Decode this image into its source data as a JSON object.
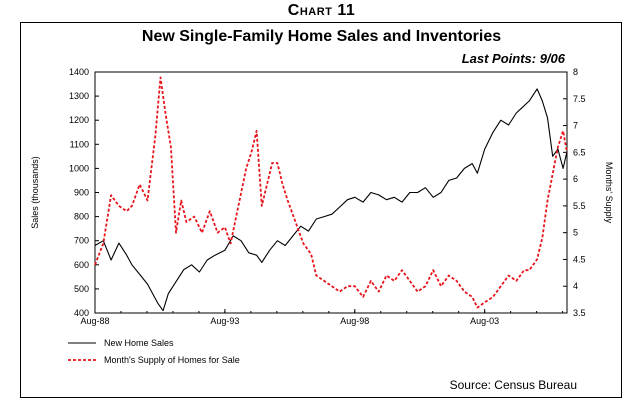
{
  "header": {
    "chart_number": "Chart 11",
    "title": "New Single-Family Home Sales and Inventories",
    "last_points": "Last Points: 9/06",
    "source": "Source: Census Bureau"
  },
  "colors": {
    "sales": "#000000",
    "supply": "#e8141c"
  },
  "chart_data": {
    "type": "line",
    "title": "New Single-Family Home Sales and Inventories",
    "xlabel": "",
    "ylabel": "Sales (thousands)",
    "y2label": "Months' Supply",
    "x_range": [
      1988.58,
      2006.75
    ],
    "ylim": [
      400,
      1400
    ],
    "y2lim": [
      3.5,
      8
    ],
    "y_ticks": [
      400,
      500,
      600,
      700,
      800,
      900,
      1000,
      1100,
      1200,
      1300,
      1400
    ],
    "y2_ticks": [
      3.5,
      4,
      4.5,
      5,
      5.5,
      6,
      6.5,
      7,
      7.5,
      8
    ],
    "x_ticks": [
      {
        "x": 1988.58,
        "label": "Aug-88"
      },
      {
        "x": 1993.58,
        "label": "Aug-93"
      },
      {
        "x": 1998.58,
        "label": "Aug-98"
      },
      {
        "x": 2003.58,
        "label": "Aug-03"
      }
    ],
    "grid": false,
    "legend_position": "bottom-left",
    "series": [
      {
        "name": "New Home Sales",
        "axis": "left",
        "style": "solid",
        "points": [
          [
            1988.58,
            680
          ],
          [
            1988.9,
            700
          ],
          [
            1989.2,
            620
          ],
          [
            1989.5,
            690
          ],
          [
            1989.8,
            640
          ],
          [
            1990.0,
            600
          ],
          [
            1990.3,
            560
          ],
          [
            1990.6,
            520
          ],
          [
            1991.0,
            440
          ],
          [
            1991.2,
            410
          ],
          [
            1991.4,
            480
          ],
          [
            1991.7,
            530
          ],
          [
            1992.0,
            580
          ],
          [
            1992.3,
            600
          ],
          [
            1992.6,
            570
          ],
          [
            1992.9,
            620
          ],
          [
            1993.2,
            640
          ],
          [
            1993.58,
            660
          ],
          [
            1993.9,
            720
          ],
          [
            1994.2,
            700
          ],
          [
            1994.5,
            650
          ],
          [
            1994.8,
            640
          ],
          [
            1995.0,
            610
          ],
          [
            1995.3,
            660
          ],
          [
            1995.6,
            700
          ],
          [
            1995.9,
            680
          ],
          [
            1996.2,
            720
          ],
          [
            1996.5,
            760
          ],
          [
            1996.8,
            740
          ],
          [
            1997.1,
            790
          ],
          [
            1997.4,
            800
          ],
          [
            1997.7,
            810
          ],
          [
            1998.0,
            840
          ],
          [
            1998.3,
            870
          ],
          [
            1998.58,
            880
          ],
          [
            1998.9,
            860
          ],
          [
            1999.2,
            900
          ],
          [
            1999.5,
            890
          ],
          [
            1999.8,
            870
          ],
          [
            2000.1,
            880
          ],
          [
            2000.4,
            860
          ],
          [
            2000.7,
            900
          ],
          [
            2001.0,
            900
          ],
          [
            2001.3,
            920
          ],
          [
            2001.6,
            880
          ],
          [
            2001.9,
            900
          ],
          [
            2002.2,
            950
          ],
          [
            2002.5,
            960
          ],
          [
            2002.8,
            1000
          ],
          [
            2003.1,
            1020
          ],
          [
            2003.3,
            980
          ],
          [
            2003.58,
            1080
          ],
          [
            2003.9,
            1150
          ],
          [
            2004.2,
            1200
          ],
          [
            2004.5,
            1180
          ],
          [
            2004.8,
            1230
          ],
          [
            2005.0,
            1250
          ],
          [
            2005.3,
            1280
          ],
          [
            2005.6,
            1330
          ],
          [
            2005.8,
            1280
          ],
          [
            2006.0,
            1210
          ],
          [
            2006.2,
            1050
          ],
          [
            2006.4,
            1080
          ],
          [
            2006.6,
            1000
          ],
          [
            2006.75,
            1070
          ]
        ]
      },
      {
        "name": "Month's Supply of Homes for Sale",
        "axis": "right",
        "style": "dashed",
        "points": [
          [
            1988.58,
            4.4
          ],
          [
            1988.9,
            4.8
          ],
          [
            1989.2,
            5.7
          ],
          [
            1989.5,
            5.5
          ],
          [
            1989.8,
            5.4
          ],
          [
            1990.0,
            5.5
          ],
          [
            1990.3,
            5.9
          ],
          [
            1990.6,
            5.6
          ],
          [
            1990.9,
            6.8
          ],
          [
            1991.1,
            7.9
          ],
          [
            1991.3,
            7.2
          ],
          [
            1991.5,
            6.6
          ],
          [
            1991.7,
            5.0
          ],
          [
            1991.9,
            5.6
          ],
          [
            1992.1,
            5.2
          ],
          [
            1992.4,
            5.3
          ],
          [
            1992.7,
            5.0
          ],
          [
            1993.0,
            5.4
          ],
          [
            1993.3,
            5.0
          ],
          [
            1993.58,
            5.1
          ],
          [
            1993.8,
            4.8
          ],
          [
            1994.1,
            5.5
          ],
          [
            1994.4,
            6.2
          ],
          [
            1994.6,
            6.5
          ],
          [
            1994.8,
            6.9
          ],
          [
            1995.0,
            5.5
          ],
          [
            1995.2,
            5.9
          ],
          [
            1995.4,
            6.3
          ],
          [
            1995.6,
            6.3
          ],
          [
            1995.8,
            5.9
          ],
          [
            1996.0,
            5.6
          ],
          [
            1996.3,
            5.2
          ],
          [
            1996.6,
            4.8
          ],
          [
            1996.9,
            4.6
          ],
          [
            1997.1,
            4.2
          ],
          [
            1997.4,
            4.1
          ],
          [
            1997.7,
            4.0
          ],
          [
            1998.0,
            3.9
          ],
          [
            1998.3,
            4.0
          ],
          [
            1998.58,
            4.0
          ],
          [
            1998.9,
            3.8
          ],
          [
            1999.2,
            4.1
          ],
          [
            1999.5,
            3.9
          ],
          [
            1999.8,
            4.2
          ],
          [
            2000.1,
            4.1
          ],
          [
            2000.4,
            4.3
          ],
          [
            2000.7,
            4.1
          ],
          [
            2001.0,
            3.9
          ],
          [
            2001.3,
            4.0
          ],
          [
            2001.6,
            4.3
          ],
          [
            2001.9,
            4.0
          ],
          [
            2002.2,
            4.2
          ],
          [
            2002.5,
            4.1
          ],
          [
            2002.8,
            3.9
          ],
          [
            2003.1,
            3.8
          ],
          [
            2003.3,
            3.6
          ],
          [
            2003.58,
            3.7
          ],
          [
            2003.9,
            3.8
          ],
          [
            2004.2,
            4.0
          ],
          [
            2004.5,
            4.2
          ],
          [
            2004.8,
            4.1
          ],
          [
            2005.1,
            4.3
          ],
          [
            2005.3,
            4.3
          ],
          [
            2005.6,
            4.5
          ],
          [
            2005.8,
            4.9
          ],
          [
            2006.0,
            5.6
          ],
          [
            2006.2,
            6.1
          ],
          [
            2006.4,
            6.6
          ],
          [
            2006.6,
            6.9
          ],
          [
            2006.75,
            6.5
          ]
        ]
      }
    ]
  }
}
